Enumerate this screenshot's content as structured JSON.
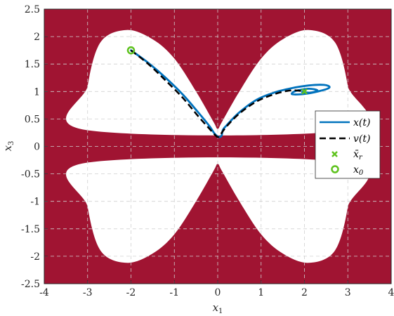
{
  "chart_data": {
    "type": "line",
    "title": "",
    "xlabel": "x",
    "xlabel_sub": "1",
    "ylabel": "x",
    "ylabel_sub": "3",
    "xlim": [
      -4,
      4
    ],
    "ylim": [
      -2.5,
      2.5
    ],
    "xticks": [
      -4,
      -3,
      -2,
      -1,
      0,
      1,
      2,
      3,
      4
    ],
    "xtick_labels": [
      "-4",
      "-3",
      "-2",
      "-1",
      "0",
      "1",
      "2",
      "3",
      "4"
    ],
    "yticks": [
      2.5,
      2,
      1.5,
      1,
      0.5,
      0,
      -0.5,
      -1,
      -1.5,
      -2,
      -2.5
    ],
    "ytick_labels": [
      "2.5",
      "2",
      "1.5",
      "1",
      "0.5",
      "0",
      "-0.5",
      "-1",
      "-1.5",
      "-2",
      "-2.5"
    ],
    "grid": true,
    "legend_position": "right",
    "colors": {
      "constraint": "#a01432",
      "x_traj": "#0072bd",
      "v_traj": "#000000",
      "markers": "#5ec21d"
    },
    "constraint_region_upper_lobe": [
      [
        -3.05,
        0.3
      ],
      [
        -3.0,
        1.1
      ],
      [
        -2.7,
        1.9
      ],
      [
        -2.1,
        2.12
      ],
      [
        -1.5,
        1.95
      ],
      [
        -1.0,
        1.6
      ],
      [
        -0.5,
        1.0
      ],
      [
        -0.1,
        0.45
      ],
      [
        0.0,
        0.32
      ],
      [
        0.1,
        0.45
      ],
      [
        0.5,
        1.0
      ],
      [
        1.0,
        1.6
      ],
      [
        1.5,
        1.95
      ],
      [
        2.1,
        2.12
      ],
      [
        2.7,
        1.9
      ],
      [
        3.0,
        1.1
      ],
      [
        3.05,
        0.3
      ]
    ],
    "constraint_region_lower_lobe": [
      [
        3.05,
        -0.3
      ],
      [
        3.0,
        -1.1
      ],
      [
        2.7,
        -1.9
      ],
      [
        2.1,
        -2.12
      ],
      [
        1.5,
        -1.95
      ],
      [
        1.0,
        -1.6
      ],
      [
        0.5,
        -1.0
      ],
      [
        0.1,
        -0.45
      ],
      [
        0.0,
        -0.32
      ],
      [
        -0.1,
        -0.45
      ],
      [
        -0.5,
        -1.0
      ],
      [
        -1.0,
        -1.6
      ],
      [
        -1.5,
        -1.95
      ],
      [
        -2.1,
        -2.12
      ],
      [
        -2.7,
        -1.9
      ],
      [
        -3.0,
        -1.1
      ],
      [
        -3.05,
        -0.3
      ]
    ],
    "series": [
      {
        "name": "x(t)",
        "style": "solid",
        "x": [
          -2.0,
          -1.6,
          -1.2,
          -0.8,
          -0.45,
          -0.2,
          -0.08,
          0.0,
          0.05,
          0.09,
          0.12,
          0.2,
          0.5,
          0.9,
          1.3,
          1.7,
          2.1,
          2.45,
          2.58,
          2.45,
          2.05,
          1.72,
          1.8,
          2.1,
          2.3,
          2.15,
          1.95,
          2.0
        ],
        "y": [
          1.75,
          1.52,
          1.25,
          0.94,
          0.62,
          0.38,
          0.24,
          0.18,
          0.17,
          0.2,
          0.3,
          0.38,
          0.62,
          0.85,
          0.98,
          1.06,
          1.11,
          1.12,
          1.08,
          1.03,
          0.96,
          0.95,
          1.01,
          1.05,
          1.02,
          0.98,
          0.99,
          1.0
        ]
      },
      {
        "name": "v(t)",
        "style": "dashed",
        "x": [
          -2.0,
          -1.6,
          -1.2,
          -0.8,
          -0.45,
          -0.2,
          -0.05,
          0.0,
          0.05,
          0.2,
          0.5,
          0.9,
          1.3,
          1.6,
          1.8,
          2.0
        ],
        "y": [
          1.75,
          1.5,
          1.2,
          0.88,
          0.55,
          0.33,
          0.2,
          0.17,
          0.2,
          0.36,
          0.6,
          0.82,
          0.95,
          1.01,
          1.02,
          1.0
        ]
      },
      {
        "name": "x̄_r",
        "marker": "x",
        "x": [
          2.0
        ],
        "y": [
          1.0
        ]
      },
      {
        "name": "x_0",
        "marker": "o",
        "x": [
          -2.0
        ],
        "y": [
          1.75
        ]
      }
    ],
    "legend": [
      {
        "label": "x(t)",
        "style": "solid"
      },
      {
        "label": "v(t)",
        "style": "dashed"
      },
      {
        "label": "x̄",
        "sub": "r",
        "style": "x-marker"
      },
      {
        "label": "x",
        "sub": "0",
        "style": "o-marker"
      }
    ]
  }
}
